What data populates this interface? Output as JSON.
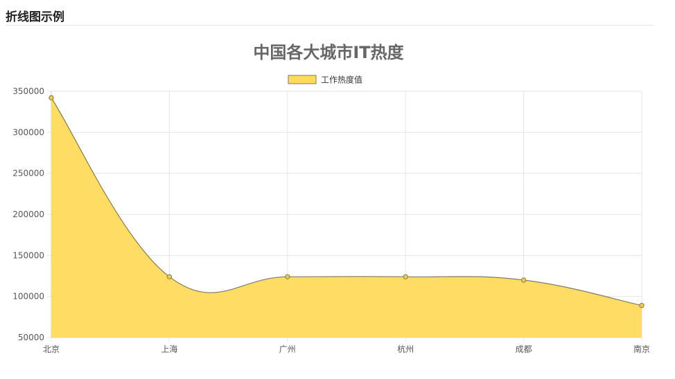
{
  "page": {
    "title": "折线图示例"
  },
  "chart_data": {
    "type": "area",
    "title": "中国各大城市IT热度",
    "categories": [
      "北京",
      "上海",
      "广州",
      "杭州",
      "成都",
      "南京"
    ],
    "series": [
      {
        "name": "工作热度值",
        "values": [
          342000,
          124000,
          124000,
          124000,
          120000,
          89000
        ],
        "color": "#ffd440",
        "fill_color": "#ffdb5c",
        "line_color": "#7a7a6a"
      }
    ],
    "ylim": [
      50000,
      350000
    ],
    "yticks": [
      50000,
      100000,
      150000,
      200000,
      250000,
      300000,
      350000
    ],
    "grid": true,
    "legend_position": "top-center",
    "xlabel": "",
    "ylabel": ""
  }
}
